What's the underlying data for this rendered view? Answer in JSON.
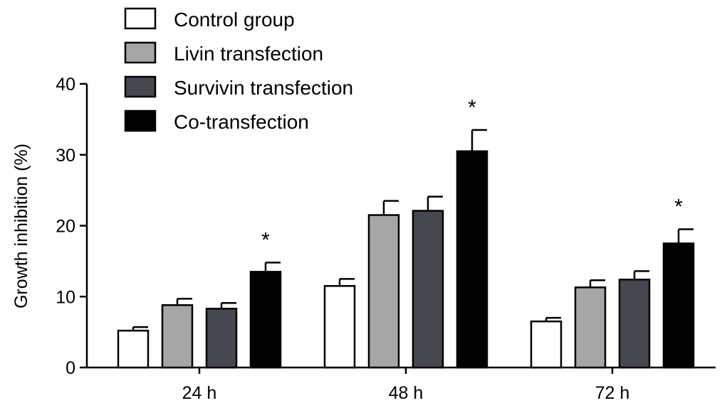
{
  "chart_data": {
    "type": "bar",
    "categories": [
      "24 h",
      "48 h",
      "72 h"
    ],
    "series": [
      {
        "name": "Control group",
        "color": "#ffffff",
        "values": [
          5.2,
          11.5,
          6.5
        ],
        "errors": [
          0.5,
          1.0,
          0.5
        ]
      },
      {
        "name": "Livin transfection",
        "color": "#a6a6a6",
        "values": [
          8.8,
          21.5,
          11.3
        ],
        "errors": [
          0.9,
          2.0,
          1.0
        ]
      },
      {
        "name": "Survivin transfection",
        "color": "#474750",
        "values": [
          8.3,
          22.1,
          12.4
        ],
        "errors": [
          0.8,
          2.0,
          1.2
        ]
      },
      {
        "name": "Co-transfection",
        "color": "#000000",
        "values": [
          13.5,
          30.5,
          17.5
        ],
        "errors": [
          1.3,
          3.0,
          2.0
        ]
      }
    ],
    "annotations": [
      {
        "category": "24 h",
        "series": "Co-transfection",
        "text": "*"
      },
      {
        "category": "48 h",
        "series": "Co-transfection",
        "text": "*"
      },
      {
        "category": "72 h",
        "series": "Co-transfection",
        "text": "*"
      }
    ],
    "title": "",
    "xlabel": "",
    "ylabel": "Growth inhibition (%)",
    "ylim": [
      0,
      40
    ],
    "yticks": [
      0,
      10,
      20,
      30,
      40
    ],
    "grid": false,
    "legend_position": "top-left",
    "error_bars": "upper"
  }
}
